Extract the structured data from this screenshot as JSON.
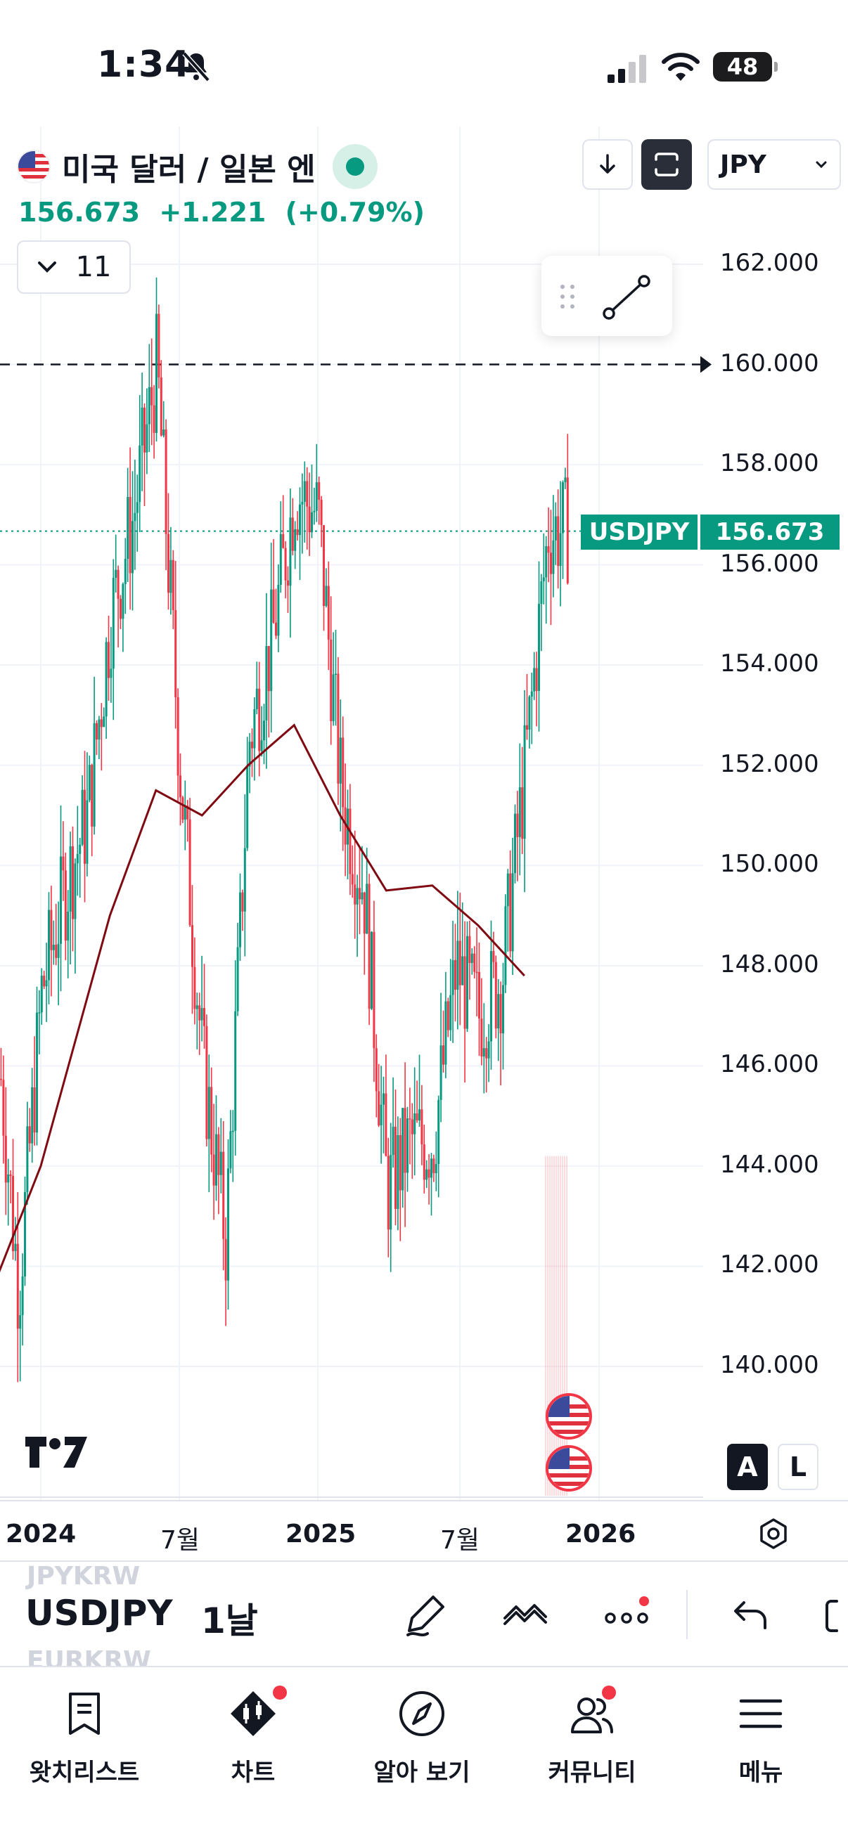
{
  "status_bar": {
    "time": "1:34",
    "battery": "48"
  },
  "header": {
    "title": "미국 달러 / 일본 엔",
    "price": "156.673",
    "change": "+1.221",
    "change_pct": "(+0.79%)",
    "collapse_count": "11",
    "currency": "JPY"
  },
  "price_tag": {
    "symbol": "USDJPY",
    "value": "156.673"
  },
  "y_axis": [
    "162.000",
    "160.000",
    "158.000",
    "156.000",
    "154.000",
    "152.000",
    "150.000",
    "148.000",
    "146.000",
    "144.000",
    "142.000",
    "140.000"
  ],
  "x_axis": [
    "2024",
    "7월",
    "2025",
    "7월",
    "2026"
  ],
  "scale_buttons": {
    "auto": "A",
    "log": "L"
  },
  "toolbar": {
    "symbol": "USDJPY",
    "interval": "1날",
    "prev_symbol": "JPYKRW",
    "next_symbol": "EURKRW"
  },
  "nav": [
    {
      "label": "왓치리스트",
      "icon": "bookmark-icon"
    },
    {
      "label": "차트",
      "icon": "candles-icon"
    },
    {
      "label": "알아 보기",
      "icon": "compass-icon"
    },
    {
      "label": "커뮤니티",
      "icon": "community-icon"
    },
    {
      "label": "메뉴",
      "icon": "menu-icon"
    }
  ],
  "colors": {
    "up": "#089981",
    "down": "#f23645",
    "ma": "#7f0a12",
    "text": "#131722"
  },
  "chart_data": {
    "type": "candlestick",
    "symbol": "USDJPY",
    "ylim": [
      139,
      163
    ],
    "y_ticks": [
      140,
      142,
      144,
      146,
      148,
      150,
      152,
      154,
      156,
      158,
      160,
      162
    ],
    "x_ticks": [
      "2024",
      "7월",
      "2025",
      "7월",
      "2026"
    ],
    "horizontal_line": 160,
    "last_price": 156.673,
    "close_path": [
      [
        "2023-10",
        150.0
      ],
      [
        "2023-11",
        147.0
      ],
      [
        "2023-12",
        141.5
      ],
      [
        "2024-01",
        147.5
      ],
      [
        "2024-02",
        149.5
      ],
      [
        "2024-03",
        151.0
      ],
      [
        "2024-04",
        155.0
      ],
      [
        "2024-05",
        157.0
      ],
      [
        "2024-06",
        160.0
      ],
      [
        "2024-07",
        152.0
      ],
      [
        "2024-08",
        146.0
      ],
      [
        "2024-09",
        142.5
      ],
      [
        "2024-10",
        152.5
      ],
      [
        "2024-11",
        154.5
      ],
      [
        "2024-12",
        157.5
      ],
      [
        "2025-01",
        157.0
      ],
      [
        "2025-02",
        151.5
      ],
      [
        "2025-03",
        149.5
      ],
      [
        "2025-04",
        143.5
      ],
      [
        "2025-05",
        144.5
      ],
      [
        "2025-06",
        144.5
      ],
      [
        "2025-07",
        148.0
      ],
      [
        "2025-08",
        147.0
      ],
      [
        "2025-09",
        147.8
      ],
      [
        "2025-10",
        152.0
      ],
      [
        "2025-11",
        156.7
      ]
    ],
    "ma_series": [
      [
        "2023-10",
        140.5
      ],
      [
        "2024-01",
        144.0
      ],
      [
        "2024-04",
        149.0
      ],
      [
        "2024-06",
        151.5
      ],
      [
        "2024-08",
        151.0
      ],
      [
        "2024-10",
        152.0
      ],
      [
        "2024-12",
        152.8
      ],
      [
        "2025-02",
        151.0
      ],
      [
        "2025-04",
        149.5
      ],
      [
        "2025-06",
        149.6
      ],
      [
        "2025-08",
        148.8
      ],
      [
        "2025-10",
        147.8
      ]
    ]
  }
}
